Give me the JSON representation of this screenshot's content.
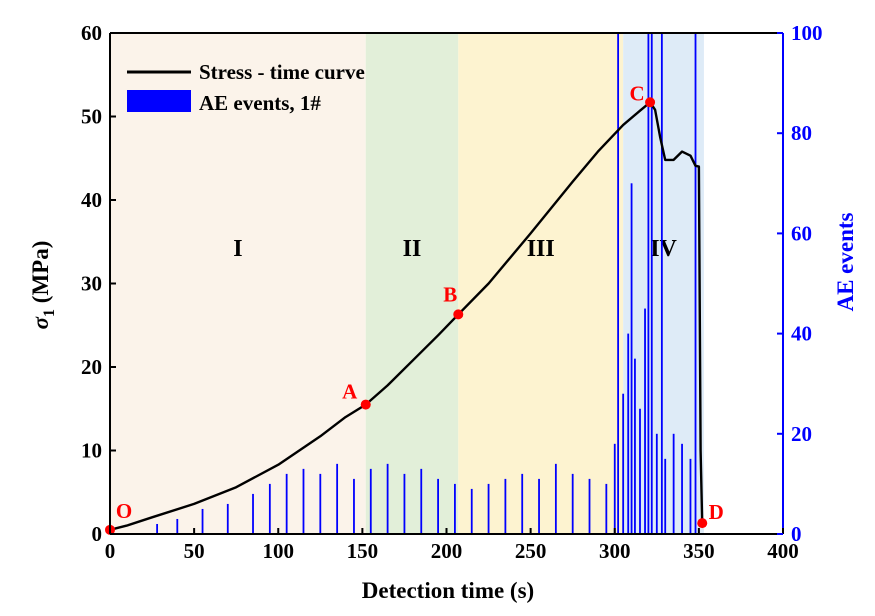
{
  "chart_data": {
    "type": "line",
    "title": "",
    "xlabel": "Detection time (s)",
    "ylabel_left_symbol": "σ",
    "ylabel_left_sub": "1",
    "ylabel_left_unit": " (MPa)",
    "ylabel_right": "AE events",
    "xlim": [
      0,
      400
    ],
    "ylim_left": [
      0,
      60
    ],
    "ylim_right": [
      0,
      100
    ],
    "xticks": [
      "0",
      "50",
      "100",
      "150",
      "200",
      "250",
      "300",
      "350",
      "400"
    ],
    "yticks_left": [
      "0",
      "10",
      "20",
      "30",
      "40",
      "50",
      "60"
    ],
    "yticks_right": [
      "0",
      "20",
      "40",
      "60",
      "80",
      "100"
    ],
    "legend": {
      "position": "top-left",
      "entries": [
        {
          "label": "Stress - time curve",
          "kind": "line",
          "color": "#000000"
        },
        {
          "label": "AE events, 1#",
          "kind": "bar",
          "color": "#0000ff"
        }
      ]
    },
    "stages": [
      {
        "label": "I",
        "from": 0,
        "to": 152,
        "color": "#fbf3ea"
      },
      {
        "label": "II",
        "from": 152,
        "to": 207,
        "color": "#e2efd9"
      },
      {
        "label": "III",
        "from": 207,
        "to": 305,
        "color": "#fdf3d0"
      },
      {
        "label": "IV",
        "from": 305,
        "to": 353,
        "color": "#deebf7"
      }
    ],
    "points": [
      {
        "label": "O",
        "x": 0,
        "y": 0.5
      },
      {
        "label": "A",
        "x": 152,
        "y": 15.5
      },
      {
        "label": "B",
        "x": 207,
        "y": 26.3
      },
      {
        "label": "C",
        "x": 321,
        "y": 51.7
      },
      {
        "label": "D",
        "x": 352,
        "y": 1.3
      }
    ],
    "series": [
      {
        "name": "Stress - time curve",
        "axis": "left",
        "x": [
          0,
          10,
          25,
          50,
          75,
          100,
          125,
          140,
          152,
          165,
          180,
          195,
          207,
          225,
          250,
          275,
          290,
          305,
          315,
          321,
          324,
          327,
          330,
          335,
          340,
          345,
          348,
          350,
          351,
          352
        ],
        "y": [
          0.5,
          1.0,
          2.0,
          3.6,
          5.6,
          8.3,
          11.7,
          14.0,
          15.5,
          17.8,
          20.8,
          23.8,
          26.3,
          30.0,
          36.0,
          42.2,
          45.8,
          49.0,
          50.7,
          51.7,
          50.8,
          47.5,
          44.8,
          44.8,
          45.8,
          45.3,
          44.1,
          44.0,
          10.0,
          1.3
        ]
      },
      {
        "name": "AE events, 1#",
        "axis": "right",
        "description_type": "events",
        "x": [
          28,
          40,
          55,
          70,
          85,
          95,
          105,
          115,
          125,
          135,
          145,
          155,
          165,
          175,
          185,
          195,
          205,
          215,
          225,
          235,
          245,
          255,
          265,
          275,
          285,
          295,
          300,
          302,
          305,
          308,
          310,
          312,
          315,
          318,
          320,
          322,
          325,
          328,
          330,
          335,
          340,
          345,
          348
        ],
        "y": [
          2,
          3,
          5,
          6,
          8,
          10,
          12,
          13,
          12,
          14,
          11,
          13,
          14,
          12,
          13,
          11,
          10,
          9,
          10,
          11,
          12,
          11,
          14,
          12,
          11,
          10,
          18,
          100,
          28,
          40,
          70,
          35,
          25,
          45,
          100,
          100,
          20,
          100,
          15,
          20,
          18,
          15,
          100
        ]
      }
    ]
  }
}
